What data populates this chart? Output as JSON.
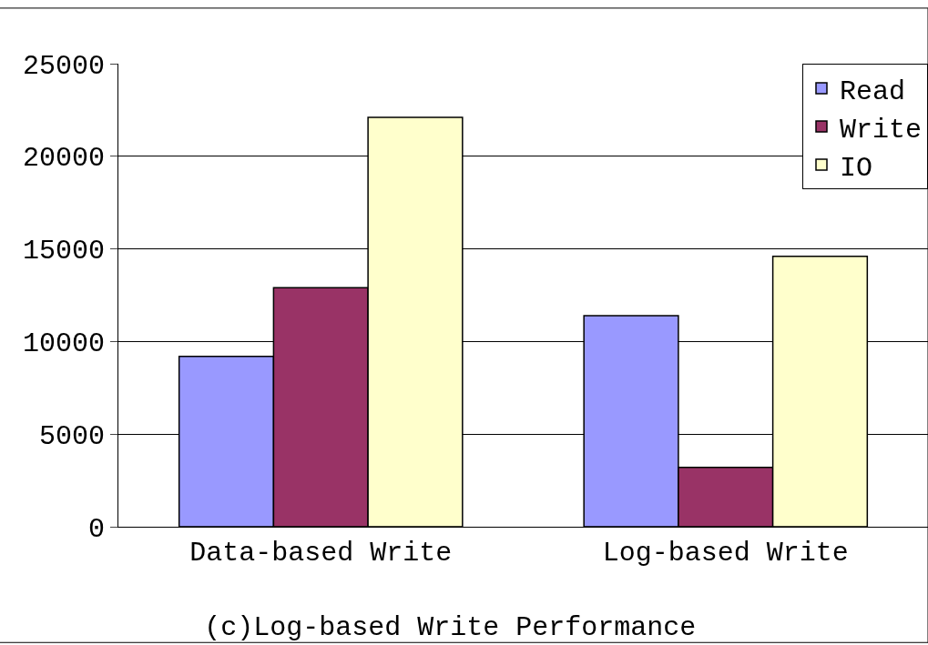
{
  "chart_data": {
    "type": "bar",
    "title": "(c)Log-based Write Performance",
    "categories": [
      "Data-based Write",
      "Log-based Write"
    ],
    "series": [
      {
        "name": "Read",
        "color": "#9999ff",
        "values": [
          9200,
          11400
        ]
      },
      {
        "name": "Write",
        "color": "#993366",
        "values": [
          12900,
          3200
        ]
      },
      {
        "name": "IO",
        "color": "#ffffcc",
        "values": [
          22100,
          14600
        ]
      }
    ],
    "ylim": [
      0,
      25000
    ],
    "yticks": [
      0,
      5000,
      10000,
      15000,
      20000,
      25000
    ],
    "grid": "y",
    "legend": "top right"
  }
}
